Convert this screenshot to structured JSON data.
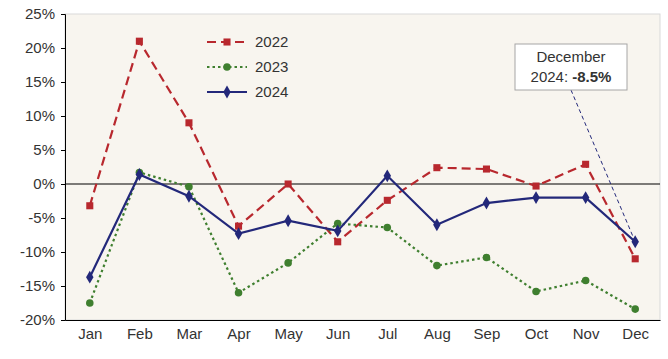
{
  "chart_data": {
    "type": "line",
    "categories": [
      "Jan",
      "Feb",
      "Mar",
      "Apr",
      "May",
      "Jun",
      "Jul",
      "Aug",
      "Sep",
      "Oct",
      "Nov",
      "Dec"
    ],
    "series": [
      {
        "name": "2022",
        "color": "#b8282e",
        "marker": "square",
        "line_style": "dashed",
        "values": [
          -3.2,
          21,
          9,
          -6.2,
          0,
          -8.5,
          -2.4,
          2.4,
          2.2,
          -0.3,
          2.9,
          -11
        ]
      },
      {
        "name": "2023",
        "color": "#3f7f2f",
        "marker": "circle",
        "line_style": "dotted",
        "values": [
          -17.5,
          1.7,
          -0.4,
          -16,
          -11.6,
          -5.8,
          -6.4,
          -12,
          -10.8,
          -15.8,
          -14.2,
          -18.4
        ]
      },
      {
        "name": "2024",
        "color": "#23287a",
        "marker": "diamond",
        "line_style": "solid",
        "values": [
          -13.7,
          1.4,
          -1.8,
          -7.3,
          -5.4,
          -6.9,
          1.2,
          -6,
          -2.8,
          -2,
          -2,
          -8.5
        ]
      }
    ],
    "ylim": [
      -20,
      25
    ],
    "yticks": [
      {
        "value": -20,
        "label": "-20%"
      },
      {
        "value": -15,
        "label": "-15%"
      },
      {
        "value": -10,
        "label": "-10%"
      },
      {
        "value": -5,
        "label": "-5%"
      },
      {
        "value": 0,
        "label": "0%"
      },
      {
        "value": 5,
        "label": "5%"
      },
      {
        "value": 10,
        "label": "10%"
      },
      {
        "value": 15,
        "label": "15%"
      },
      {
        "value": 20,
        "label": "20%"
      },
      {
        "value": 25,
        "label": "25%"
      }
    ],
    "grid": false,
    "legend": "upper left",
    "annotations": [
      {
        "text": [
          "December",
          "2024:"
        ],
        "value": -8.5,
        "value_label": "-8.5%",
        "series": "2024",
        "category": "Dec"
      }
    ]
  }
}
